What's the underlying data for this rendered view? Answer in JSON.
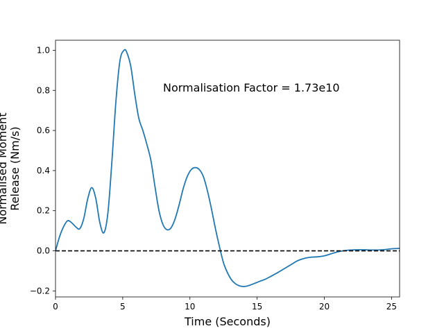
{
  "chart_data": {
    "type": "line",
    "title": "",
    "xlabel": "Time (Seconds)",
    "ylabel_lines": [
      "Normalised Moment",
      "Release (Nm/s)"
    ],
    "annotation": "Normalisation Factor = 1.73e10",
    "xlim": [
      0,
      25.6
    ],
    "ylim": [
      -0.23,
      1.05
    ],
    "xticks": [
      0,
      5,
      10,
      15,
      20,
      25
    ],
    "yticks": [
      -0.2,
      0.0,
      0.2,
      0.4,
      0.6,
      0.8,
      1.0
    ],
    "xtick_labels": [
      "0",
      "5",
      "10",
      "15",
      "20",
      "25"
    ],
    "ytick_labels": [
      "−0.2",
      "0.0",
      "0.2",
      "0.4",
      "0.6",
      "0.8",
      "1.0"
    ],
    "grid": false,
    "series": [
      {
        "color": "#1f77b4",
        "x": [
          0,
          0.3,
          0.6,
          0.9,
          1.2,
          1.5,
          1.8,
          2.1,
          2.4,
          2.7,
          3.0,
          3.3,
          3.6,
          3.9,
          4.2,
          4.5,
          4.8,
          5.1,
          5.3,
          5.6,
          5.9,
          6.2,
          6.5,
          6.8,
          7.1,
          7.4,
          7.7,
          8.0,
          8.3,
          8.6,
          8.9,
          9.2,
          9.5,
          9.8,
          10.1,
          10.4,
          10.7,
          11.0,
          11.3,
          11.6,
          11.9,
          12.2,
          12.5,
          12.8,
          13.1,
          13.4,
          13.7,
          14.0,
          14.3,
          14.6,
          14.9,
          15.2,
          15.6,
          16.0,
          16.5,
          17.0,
          17.5,
          18.0,
          18.5,
          19.0,
          19.5,
          20.0,
          20.5,
          21.0,
          21.5,
          22.0,
          22.5,
          23.0,
          23.5,
          24.0,
          24.5,
          25.0,
          25.6
        ],
        "y": [
          0.0,
          0.07,
          0.12,
          0.15,
          0.14,
          0.12,
          0.11,
          0.16,
          0.26,
          0.315,
          0.26,
          0.14,
          0.09,
          0.19,
          0.45,
          0.75,
          0.95,
          1.0,
          0.99,
          0.92,
          0.78,
          0.66,
          0.6,
          0.53,
          0.45,
          0.32,
          0.2,
          0.13,
          0.105,
          0.115,
          0.16,
          0.23,
          0.31,
          0.37,
          0.405,
          0.415,
          0.405,
          0.37,
          0.3,
          0.21,
          0.11,
          0.02,
          -0.06,
          -0.11,
          -0.145,
          -0.165,
          -0.175,
          -0.178,
          -0.175,
          -0.168,
          -0.16,
          -0.152,
          -0.142,
          -0.128,
          -0.11,
          -0.09,
          -0.07,
          -0.05,
          -0.038,
          -0.032,
          -0.03,
          -0.025,
          -0.015,
          -0.005,
          0.001,
          0.004,
          0.005,
          0.005,
          0.004,
          0.004,
          0.006,
          0.01,
          0.012
        ]
      }
    ],
    "reference_line": {
      "y": 0.0,
      "style": "dashed",
      "color": "#000000"
    }
  }
}
